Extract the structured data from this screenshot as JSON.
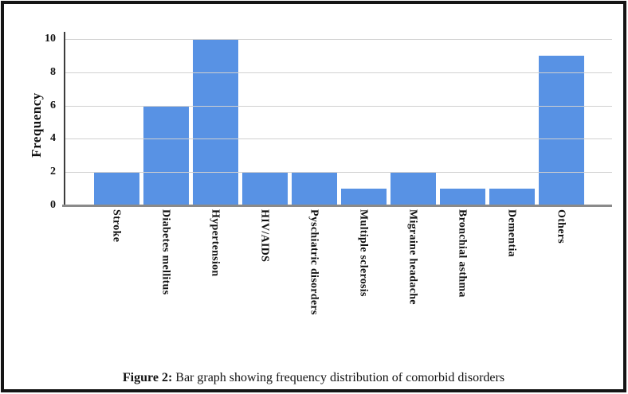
{
  "chart_data": {
    "type": "bar",
    "title": "",
    "categories": [
      "Stroke",
      "Diabetes mellitus",
      "Hypertension",
      "HIV/AIDS",
      "Pyschiatric disorders",
      "Multiple sclerosis",
      "Migraine headache",
      "Bronchial asthma",
      "Dementia",
      "Others"
    ],
    "values": [
      2,
      6,
      10,
      2,
      2,
      1,
      2,
      1,
      1,
      9
    ],
    "xlabel": "",
    "ylabel": "Frequency",
    "yticks": [
      0,
      2,
      4,
      6,
      8,
      10
    ],
    "ylim": [
      0,
      10.43
    ],
    "grid": true,
    "legend_position": "none",
    "bar_color": "#5892E4",
    "grid_color": "#d0d0d0",
    "y_axis_color": "#3d3d3d",
    "x_axis_color": "#8a8a8a"
  },
  "caption": {
    "label": "Figure 2:",
    "text": "Bar graph showing frequency distribution of comorbid disorders"
  }
}
